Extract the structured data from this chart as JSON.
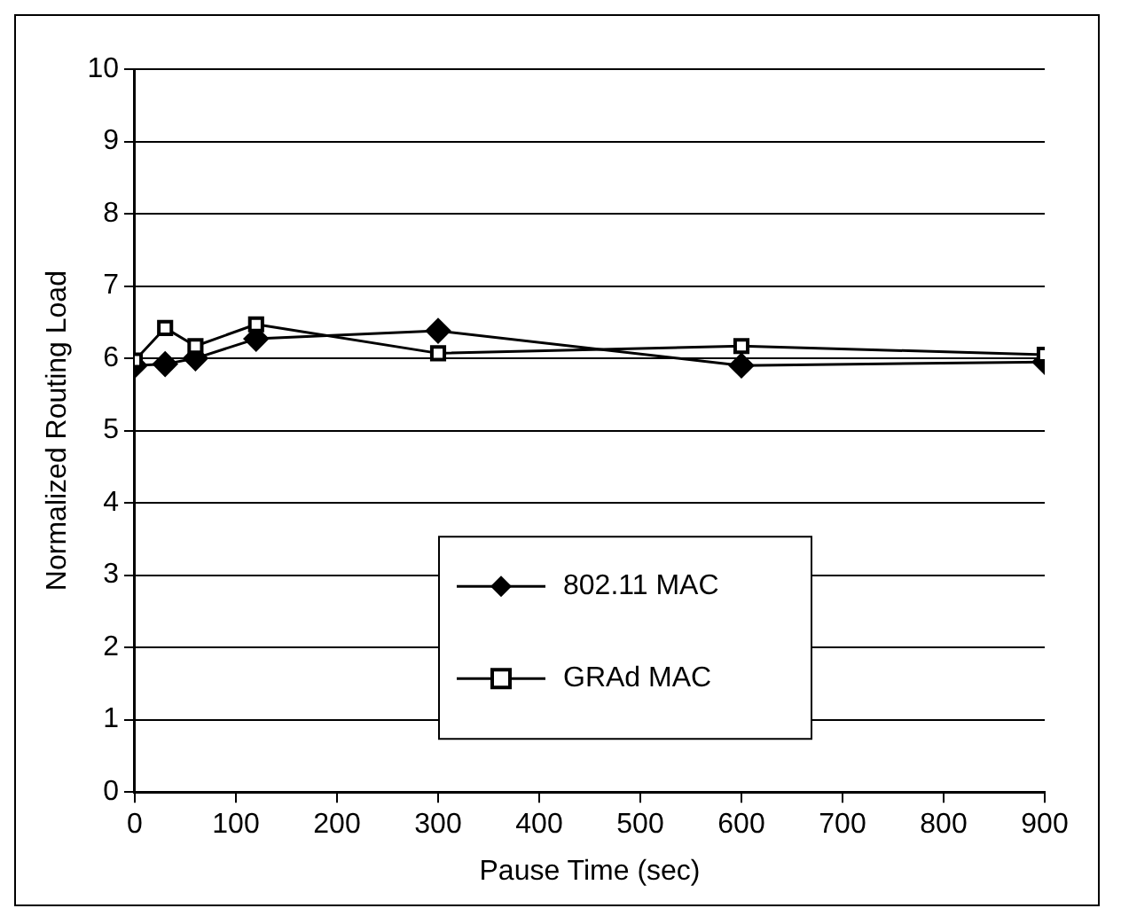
{
  "chart_data": {
    "type": "line",
    "xlabel": "Pause Time (sec)",
    "ylabel": "Normalized Routing Load",
    "x": [
      0,
      30,
      60,
      120,
      300,
      600,
      900
    ],
    "series": [
      {
        "name": "802.11 MAC",
        "color": "#000000",
        "marker": "diamond",
        "values": [
          5.9,
          5.92,
          6.0,
          6.27,
          6.38,
          5.9,
          5.95
        ]
      },
      {
        "name": "GRAd MAC",
        "color": "#000000",
        "marker": "square",
        "values": [
          5.97,
          6.42,
          6.17,
          6.47,
          6.07,
          6.17,
          6.05
        ]
      }
    ],
    "xlim": [
      0,
      900
    ],
    "xticks": [
      0,
      100,
      200,
      300,
      400,
      500,
      600,
      700,
      800,
      900
    ],
    "ylim": [
      0,
      10
    ],
    "yticks": [
      0,
      1,
      2,
      3,
      4,
      5,
      6,
      7,
      8,
      9,
      10
    ],
    "grid": "y",
    "legend": "bottom",
    "line_style": "solid"
  }
}
